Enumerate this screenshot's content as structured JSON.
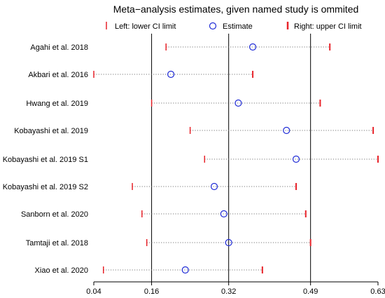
{
  "chart_data": {
    "type": "forest",
    "title": "Meta−analysis estimates, given named study is ommited",
    "legend": {
      "lower": "Left: lower CI limit",
      "estimate": "Estimate",
      "upper": "Right: upper CI limit",
      "placement": "top"
    },
    "xlim": [
      0.04,
      0.63
    ],
    "xticks": [
      0.04,
      0.16,
      0.32,
      0.49,
      0.63
    ],
    "xtick_labels": [
      "0.04",
      "0.16",
      "0.32",
      "0.49",
      "0.63"
    ],
    "reference_lines": [
      0.16,
      0.32,
      0.49
    ],
    "studies": [
      {
        "label": "Agahi et al. 2018",
        "lower": 0.19,
        "estimate": 0.37,
        "upper": 0.53
      },
      {
        "label": "Akbari et al. 2016",
        "lower": 0.04,
        "estimate": 0.2,
        "upper": 0.37
      },
      {
        "label": "Hwang et al. 2019",
        "lower": 0.16,
        "estimate": 0.34,
        "upper": 0.51
      },
      {
        "label": "Kobayashi et al. 2019",
        "lower": 0.24,
        "estimate": 0.44,
        "upper": 0.62
      },
      {
        "label": "Kobayashi et al. 2019 S1",
        "lower": 0.27,
        "estimate": 0.46,
        "upper": 0.63
      },
      {
        "label": "Kobayashi et al. 2019 S2",
        "lower": 0.12,
        "estimate": 0.29,
        "upper": 0.46
      },
      {
        "label": "Sanborn et al. 2020",
        "lower": 0.14,
        "estimate": 0.31,
        "upper": 0.48
      },
      {
        "label": "Tamtaji et al. 2018",
        "lower": 0.15,
        "estimate": 0.32,
        "upper": 0.49
      },
      {
        "label": "Xiao et al. 2020",
        "lower": 0.06,
        "estimate": 0.23,
        "upper": 0.39
      }
    ],
    "colors": {
      "ci_marker": "#e8232a",
      "estimate": "#1f2bd6",
      "line": "#000000",
      "dotted": "#777777"
    }
  }
}
